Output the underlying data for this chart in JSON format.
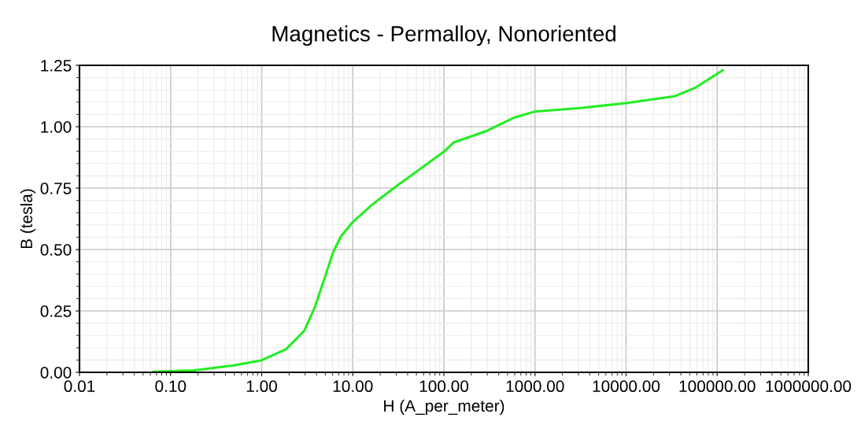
{
  "chart_data": {
    "type": "line",
    "title": "Magnetics - Permalloy, Nonoriented",
    "xlabel": "H (A_per_meter)",
    "ylabel": "B (tesla)",
    "log": "x",
    "grid": true,
    "marker": "none",
    "line_style": "solid",
    "xlim": [
      0.01,
      1000000
    ],
    "ylim": [
      0,
      1.25
    ],
    "xticks": [
      {
        "value": 0.01,
        "label": "0.01"
      },
      {
        "value": 0.1,
        "label": "0.10"
      },
      {
        "value": 1,
        "label": "1.00"
      },
      {
        "value": 10,
        "label": "10.00"
      },
      {
        "value": 100,
        "label": "100.00"
      },
      {
        "value": 1000,
        "label": "1000.00"
      },
      {
        "value": 10000,
        "label": "10000.00"
      },
      {
        "value": 100000,
        "label": "100000.00"
      },
      {
        "value": 1000000,
        "label": "1000000.00"
      }
    ],
    "yticks": [
      {
        "value": 0,
        "label": "0.00"
      },
      {
        "value": 0.25,
        "label": "0.25"
      },
      {
        "value": 0.5,
        "label": "0.50"
      },
      {
        "value": 0.75,
        "label": "0.75"
      },
      {
        "value": 1.0,
        "label": "1.00"
      },
      {
        "value": 1.25,
        "label": "1.25"
      }
    ],
    "x": [
      0.065,
      0.18,
      0.49,
      1,
      1.85,
      2.93,
      3.83,
      5.0,
      6.1,
      7.4,
      10,
      16,
      21,
      32,
      100,
      128,
      300,
      590,
      1000,
      3300,
      10000,
      34000,
      57000,
      115000
    ],
    "series": [
      {
        "color": "#22ee22",
        "values": [
          0.002,
          0.008,
          0.028,
          0.049,
          0.094,
          0.169,
          0.265,
          0.393,
          0.49,
          0.553,
          0.612,
          0.68,
          0.714,
          0.765,
          0.898,
          0.936,
          0.984,
          1.037,
          1.062,
          1.077,
          1.096,
          1.124,
          1.158,
          1.23
        ]
      }
    ]
  }
}
